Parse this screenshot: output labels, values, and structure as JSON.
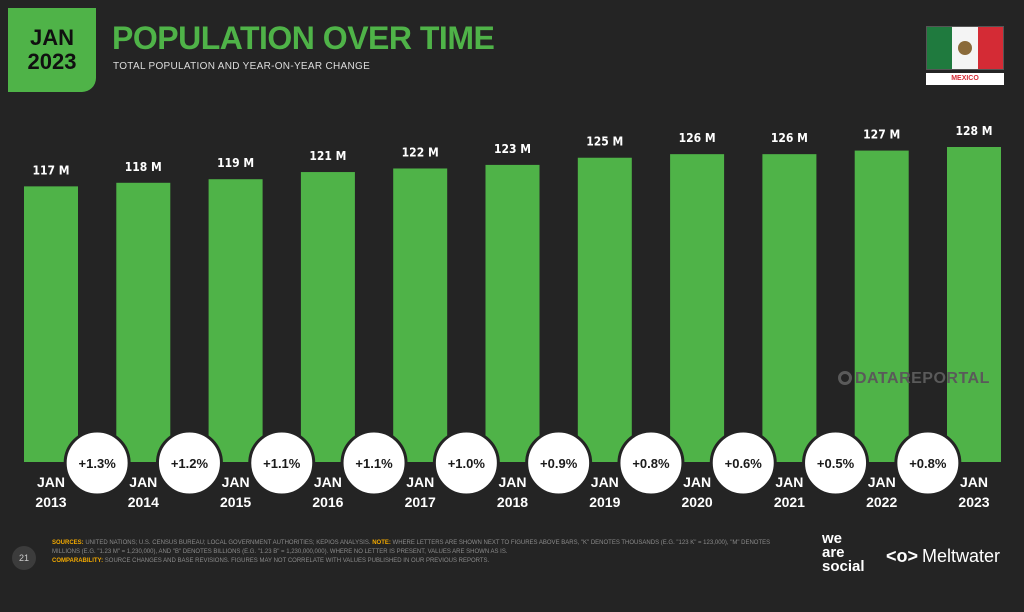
{
  "badge": {
    "month": "JAN",
    "year": "2023"
  },
  "title": "POPULATION OVER TIME",
  "subtitle": "TOTAL POPULATION AND YEAR-ON-YEAR CHANGE",
  "country": "MEXICO",
  "watermark": "DATAREPORTAL",
  "footer": {
    "page_number": "21",
    "sources_key": "SOURCES:",
    "sources_text": "UNITED NATIONS; U.S. CENSUS BUREAU; LOCAL GOVERNMENT AUTHORITIES; KEPIOS ANALYSIS.",
    "note_key": "NOTE:",
    "note_text": "WHERE LETTERS ARE SHOWN NEXT TO FIGURES ABOVE BARS, \"K\" DENOTES THOUSANDS (E.G. \"123 K\" = 123,000), \"M\" DENOTES MILLIONS (E.G. \"1.23 M\" = 1,230,000), AND \"B\" DENOTES BILLIONS (E.G. \"1.23 B\" = 1,230,000,000). WHERE NO LETTER IS PRESENT, VALUES ARE SHOWN AS IS.",
    "comparability_key": "COMPARABILITY:",
    "comparability_text": "SOURCE CHANGES AND BASE REVISIONS. FIGURES MAY NOT CORRELATE WITH VALUES PUBLISHED IN OUR PREVIOUS REPORTS.",
    "brand_was_1": "we",
    "brand_was_2": "are",
    "brand_was_3": "social",
    "brand_mw": "Meltwater",
    "brand_mw_icon": "<o>"
  },
  "colors": {
    "bar": "#4fb348",
    "background": "#242424",
    "accent": "#4fb348"
  },
  "chart_data": {
    "type": "bar",
    "categories": [
      "JAN 2013",
      "JAN 2014",
      "JAN 2015",
      "JAN 2016",
      "JAN 2017",
      "JAN 2018",
      "JAN 2019",
      "JAN 2020",
      "JAN 2021",
      "JAN 2022",
      "JAN 2023"
    ],
    "category_month": [
      "JAN",
      "JAN",
      "JAN",
      "JAN",
      "JAN",
      "JAN",
      "JAN",
      "JAN",
      "JAN",
      "JAN",
      "JAN"
    ],
    "category_year": [
      "2013",
      "2014",
      "2015",
      "2016",
      "2017",
      "2018",
      "2019",
      "2020",
      "2021",
      "2022",
      "2023"
    ],
    "values": [
      117,
      118,
      119,
      121,
      122,
      123,
      125,
      126,
      126,
      127,
      128
    ],
    "value_labels": [
      "117 M",
      "118 M",
      "119 M",
      "121 M",
      "122 M",
      "123 M",
      "125 M",
      "126 M",
      "126 M",
      "127 M",
      "128 M"
    ],
    "changes": [
      "+1.3%",
      "+1.2%",
      "+1.1%",
      "+1.1%",
      "+1.0%",
      "+0.9%",
      "+0.8%",
      "+0.6%",
      "+0.5%",
      "+0.8%"
    ],
    "unit": "M",
    "ylim": [
      0,
      130
    ],
    "grid": false,
    "legend": "none"
  }
}
